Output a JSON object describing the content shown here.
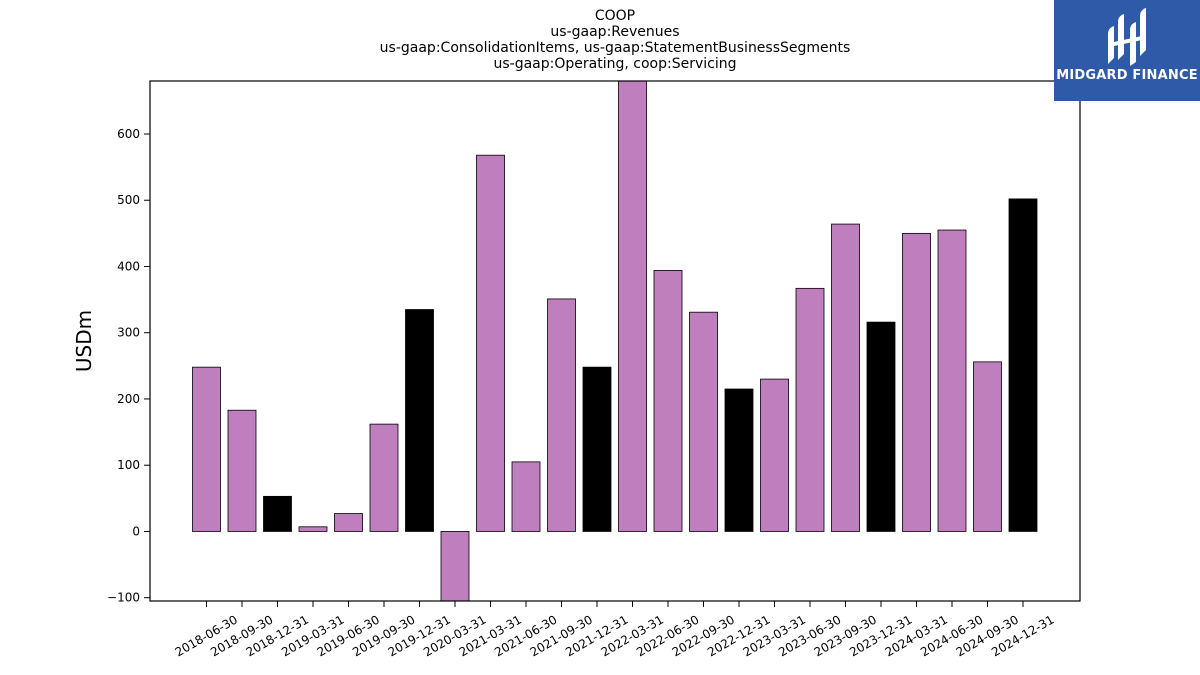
{
  "chart_data": {
    "type": "bar",
    "title_lines": [
      "COOP",
      "us-gaap:Revenues",
      "us-gaap:ConsolidationItems, us-gaap:StatementBusinessSegments",
      "us-gaap:Operating, coop:Servicing"
    ],
    "ylabel": "USDm",
    "xlabel": "",
    "ylim": [
      -105,
      680
    ],
    "yticks": [
      -100,
      0,
      100,
      200,
      300,
      400,
      500,
      600
    ],
    "categories": [
      "2018-06-30",
      "2018-09-30",
      "2018-12-31",
      "2019-03-31",
      "2019-06-30",
      "2019-09-30",
      "2019-12-31",
      "2020-03-31",
      "2021-03-31",
      "2021-06-30",
      "2021-09-30",
      "2021-12-31",
      "2022-03-31",
      "2022-06-30",
      "2022-09-30",
      "2022-12-31",
      "2023-03-31",
      "2023-06-30",
      "2023-09-30",
      "2023-12-31",
      "2024-03-31",
      "2024-06-30",
      "2024-09-30",
      "2024-12-31"
    ],
    "values": [
      248,
      183,
      53,
      7,
      27,
      162,
      335,
      -105,
      568,
      105,
      351,
      248,
      680,
      394,
      331,
      215,
      230,
      367,
      464,
      316,
      450,
      455,
      256,
      502
    ],
    "colors": {
      "quarter": "#bf7fbf",
      "year_end": "#000000",
      "edge": "#000000"
    },
    "year_end_flags": [
      false,
      false,
      true,
      false,
      false,
      false,
      true,
      false,
      false,
      false,
      false,
      true,
      false,
      false,
      false,
      true,
      false,
      false,
      false,
      true,
      false,
      false,
      false,
      true
    ],
    "grid": false,
    "legend": "none"
  },
  "logo": {
    "text": "MIDGARD FINANCE",
    "icon": "midgard-logo-icon",
    "background": "#2e5aa8"
  }
}
